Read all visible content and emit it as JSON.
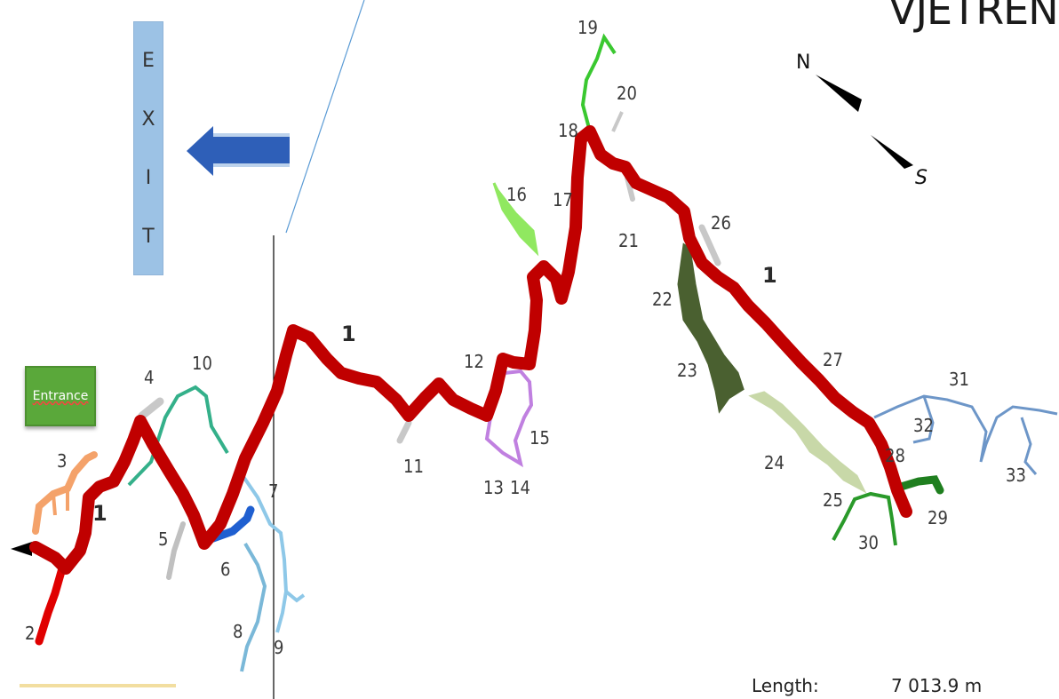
{
  "header": {
    "title_fragment": "VJETRENIC"
  },
  "exit_sign": {
    "letters": [
      "E",
      "X",
      "I",
      "T"
    ]
  },
  "entrance_button": {
    "label": "Entrance"
  },
  "compass": {
    "north": "N",
    "south": "S"
  },
  "stats": {
    "length_label": "Length:",
    "length_value": "7 013.9 m"
  },
  "passages": [
    {
      "id": "1",
      "color": "#c00000"
    },
    {
      "id": "2",
      "color": "#e00000"
    },
    {
      "id": "3",
      "color": "#f4a26a"
    },
    {
      "id": "4",
      "color": "#c8c8c8"
    },
    {
      "id": "5",
      "color": "#c0c0c0"
    },
    {
      "id": "6",
      "color": "#1f5fd0"
    },
    {
      "id": "7",
      "color": "#8ec8e8"
    },
    {
      "id": "8",
      "color": "#7ab8d8"
    },
    {
      "id": "9",
      "color": "#8ec8e8"
    },
    {
      "id": "10",
      "color": "#34b08a"
    },
    {
      "id": "11",
      "color": "#c8c8c8"
    },
    {
      "id": "12",
      "color": "#c00000"
    },
    {
      "id": "13",
      "color": "#c080e0"
    },
    {
      "id": "14",
      "color": "#c080e0"
    },
    {
      "id": "15",
      "color": "#b070e0"
    },
    {
      "id": "16",
      "color": "#90e860"
    },
    {
      "id": "17",
      "color": "#c00000"
    },
    {
      "id": "18",
      "color": "#c00000"
    },
    {
      "id": "19",
      "color": "#3ac830"
    },
    {
      "id": "20",
      "color": "#c8c8c8"
    },
    {
      "id": "21",
      "color": "#c8c8c8"
    },
    {
      "id": "22",
      "color": "#4a6030"
    },
    {
      "id": "23",
      "color": "#4a6030"
    },
    {
      "id": "24",
      "color": "#c8d8a8"
    },
    {
      "id": "25",
      "color": "#c8d8a8"
    },
    {
      "id": "26",
      "color": "#c8c8c8"
    },
    {
      "id": "27",
      "color": "#c00000"
    },
    {
      "id": "28",
      "color": "#c00000"
    },
    {
      "id": "29",
      "color": "#1f7f1f"
    },
    {
      "id": "30",
      "color": "#2a9a2a"
    },
    {
      "id": "31",
      "color": "#6d96c8"
    },
    {
      "id": "32",
      "color": "#6d96c8"
    },
    {
      "id": "33",
      "color": "#6d96c8"
    }
  ],
  "main_passage_repeat_labels": [
    "1",
    "1",
    "1"
  ]
}
